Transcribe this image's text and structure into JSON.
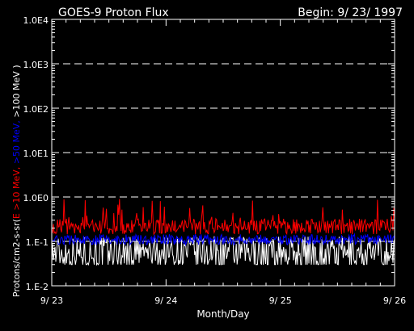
{
  "chart_data": {
    "type": "line",
    "title": "GOES-9 Proton Flux",
    "subtitle": "Begin: 9/ 23/ 1997",
    "xlabel": "Month/Day",
    "ylabel": {
      "prefix": "Protons/cm2-s-sr(",
      "parts": [
        {
          "text": "E >10 MeV,",
          "color": "#ff0000"
        },
        {
          "text": " >50 MeV,",
          "color": "#0000ff"
        },
        {
          "text": " >100 MeV )",
          "color": "#ffffff"
        }
      ]
    },
    "y_scale": "log",
    "ylim": [
      0.01,
      10000
    ],
    "y_ticks": [
      {
        "value": 0.01,
        "label": "1.E-2"
      },
      {
        "value": 0.1,
        "label": "1.E-1"
      },
      {
        "value": 1,
        "label": "1.0E0"
      },
      {
        "value": 10,
        "label": "1.0E1"
      },
      {
        "value": 100,
        "label": "1.0E2"
      },
      {
        "value": 1000,
        "label": "1.0E3"
      },
      {
        "value": 10000,
        "label": "1.0E4"
      }
    ],
    "xlim": [
      0,
      3
    ],
    "x_ticks": [
      {
        "value": 0,
        "label": "9/ 23"
      },
      {
        "value": 1,
        "label": "9/ 24"
      },
      {
        "value": 2,
        "label": "9/ 25"
      },
      {
        "value": 3,
        "label": "9/ 26"
      }
    ],
    "grid_y_dashed": true,
    "series": [
      {
        "name": ">10 MeV",
        "color": "#ff0000",
        "typical": 0.2,
        "range": [
          0.13,
          0.9
        ]
      },
      {
        "name": ">50 MeV",
        "color": "#0000ff",
        "typical": 0.11,
        "range": [
          0.08,
          0.2
        ]
      },
      {
        "name": ">100 MeV",
        "color": "#ffffff",
        "typical": 0.06,
        "range": [
          0.03,
          0.13
        ]
      }
    ]
  }
}
